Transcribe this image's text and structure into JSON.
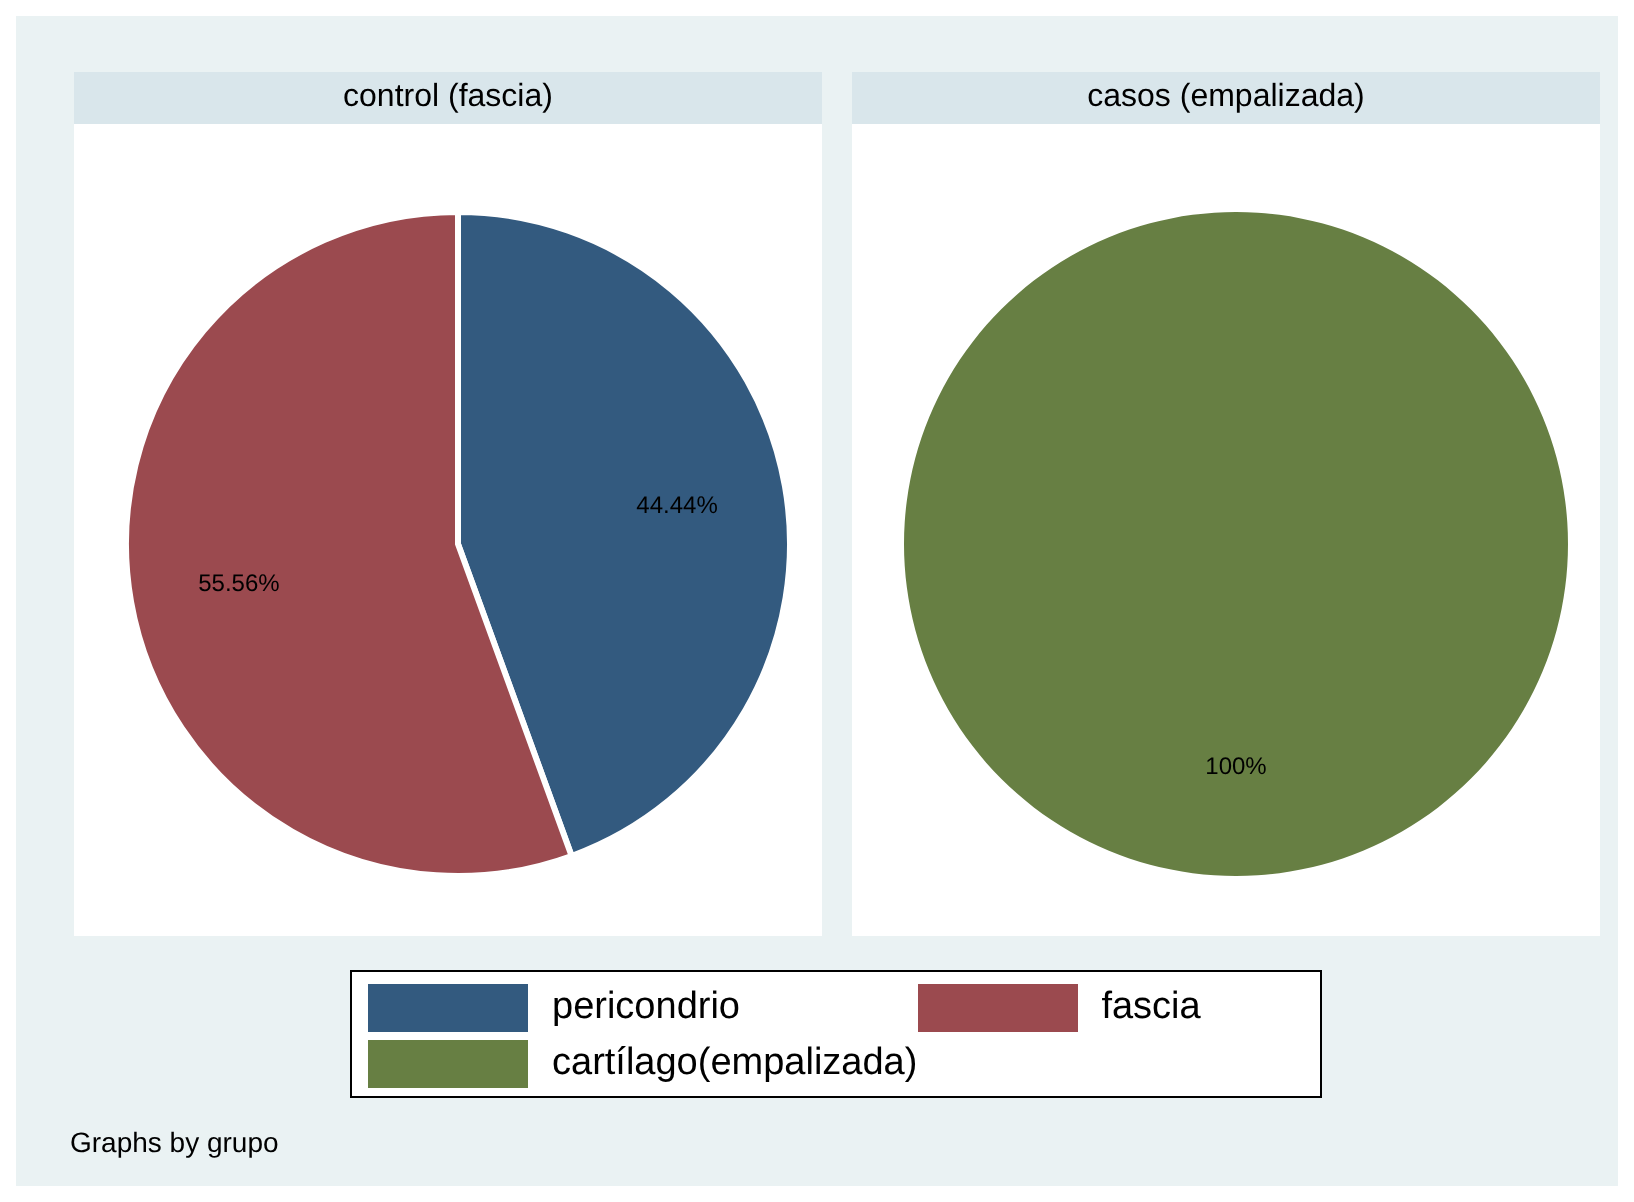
{
  "chart_data": [
    {
      "type": "pie",
      "title": "control (fascia)",
      "categories": [
        "pericondrio",
        "fascia"
      ],
      "values": [
        44.44,
        55.56
      ],
      "colors": [
        "#335a7f",
        "#9b4a4f"
      ],
      "value_labels": [
        "44.44%",
        "55.56%"
      ],
      "legend": "bottom"
    },
    {
      "type": "pie",
      "title": "casos (empalizada)",
      "categories": [
        "cartílago(empalizada)"
      ],
      "values": [
        100
      ],
      "colors": [
        "#677f43"
      ],
      "value_labels": [
        "100%"
      ],
      "legend": "bottom",
      "annotations": [
        "Graphs by grupo"
      ]
    }
  ]
}
